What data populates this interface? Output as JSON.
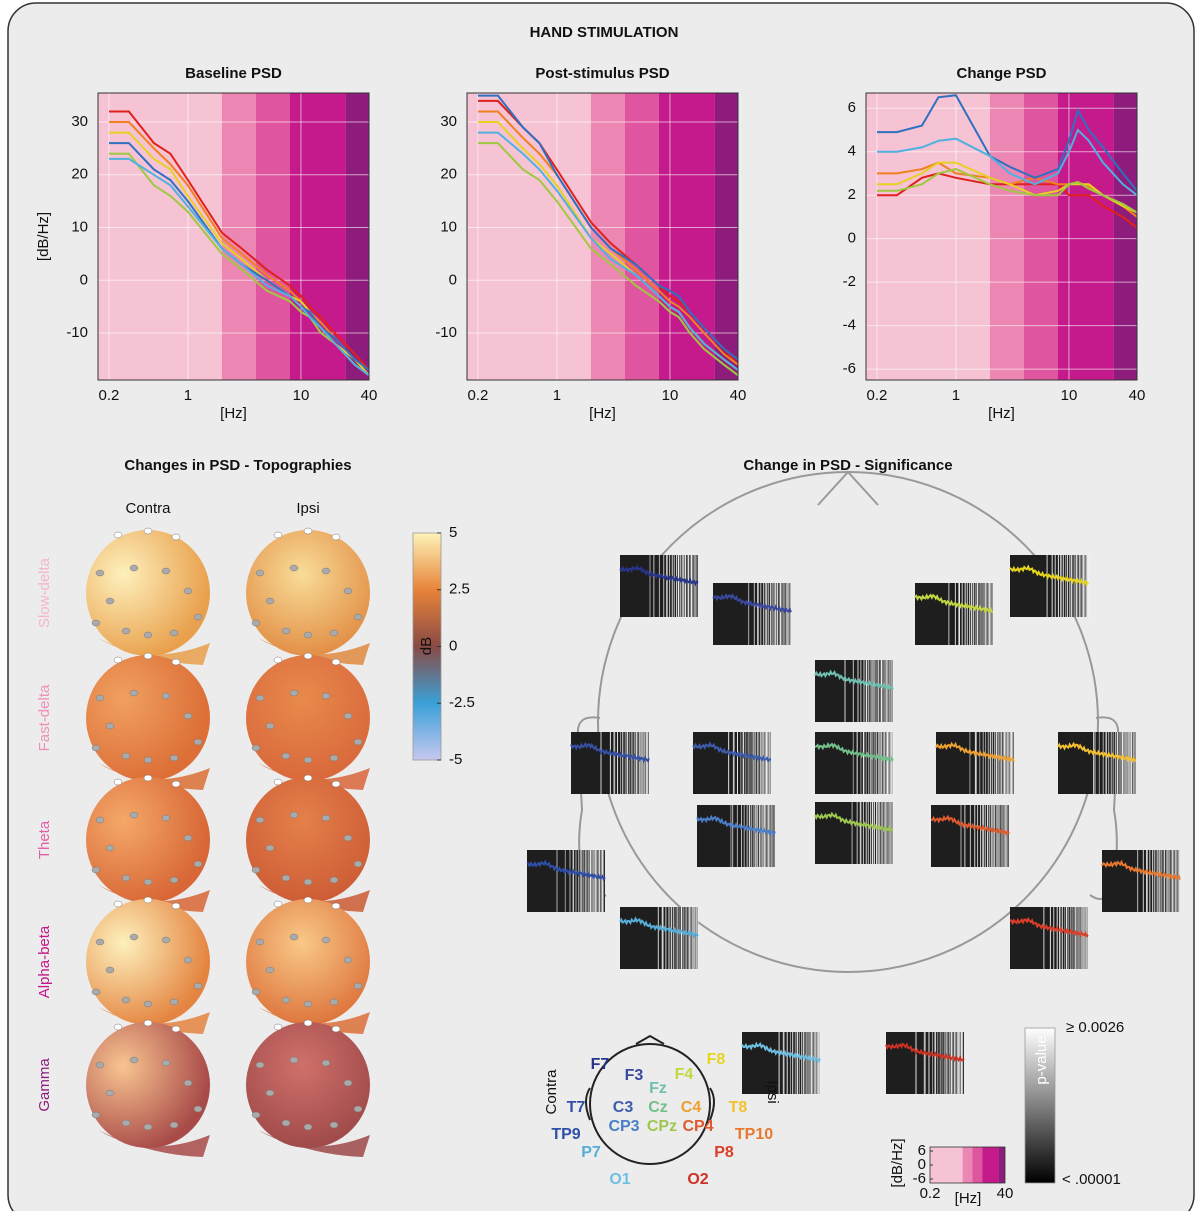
{
  "title": "HAND STIMULATION",
  "bands": {
    "edges": [
      0.16,
      2,
      4,
      8,
      25,
      40
    ],
    "colors": [
      "#f5c3d3",
      "#ec86b2",
      "#e0559f",
      "#c41a8b",
      "#8e1c7c"
    ]
  },
  "chart_data": [
    {
      "type": "line",
      "title": "Baseline PSD",
      "y_label": "[dB/Hz]",
      "x_label": "[Hz]",
      "log_x": true,
      "grid": true,
      "x": [
        0.2,
        0.3,
        0.5,
        0.7,
        1,
        2,
        3,
        5,
        8,
        10,
        12,
        15,
        20,
        30,
        40
      ],
      "xlim": [
        0.16,
        40
      ],
      "xticks": [
        0.2,
        1,
        10,
        40
      ],
      "ylim": [
        -18.9,
        35.5
      ],
      "yticks": [
        -10,
        0,
        10,
        20,
        30
      ],
      "series": [
        {
          "color": "#e0201c",
          "values": [
            32,
            32,
            26,
            24,
            19,
            9,
            6,
            2,
            -1,
            -3,
            -5,
            -7,
            -10,
            -14,
            -17
          ]
        },
        {
          "color": "#f08020",
          "values": [
            30,
            30,
            25,
            22,
            18,
            8,
            5,
            1,
            -2,
            -4,
            -6,
            -8,
            -11,
            -15,
            -17
          ]
        },
        {
          "color": "#e8d020",
          "values": [
            28,
            28,
            23,
            21,
            16,
            7,
            4,
            0,
            -3,
            -4,
            -6,
            -9,
            -12,
            -15,
            -18
          ]
        },
        {
          "color": "#a0c840",
          "values": [
            24,
            24,
            18,
            16,
            13,
            5,
            2,
            -2,
            -4,
            -6,
            -7,
            -10,
            -12,
            -16,
            -18
          ]
        },
        {
          "color": "#3070c0",
          "values": [
            26,
            26,
            21,
            19,
            15,
            6,
            3,
            0,
            -3,
            -5,
            -6,
            -9,
            -11,
            -15,
            -17
          ]
        },
        {
          "color": "#50b0e0",
          "values": [
            23,
            23,
            20,
            18,
            14,
            6,
            3,
            -1,
            -3,
            -5,
            -7,
            -9,
            -12,
            -16,
            -18
          ]
        }
      ]
    },
    {
      "type": "line",
      "title": "Post-stimulus PSD",
      "x_label": "[Hz]",
      "log_x": true,
      "grid": true,
      "x": [
        0.2,
        0.3,
        0.5,
        0.7,
        1,
        2,
        3,
        5,
        8,
        10,
        12,
        15,
        20,
        30,
        40
      ],
      "xlim": [
        0.16,
        40
      ],
      "xticks": [
        0.2,
        1,
        10,
        40
      ],
      "ylim": [
        -18.9,
        35.5
      ],
      "yticks": [
        -10,
        0,
        10,
        20,
        30
      ],
      "series": [
        {
          "color": "#e0201c",
          "values": [
            34,
            34,
            29,
            26,
            21,
            11,
            7,
            3,
            -1,
            -3,
            -4,
            -6,
            -9,
            -13,
            -16
          ]
        },
        {
          "color": "#f08020",
          "values": [
            32,
            32,
            27,
            24,
            20,
            10,
            6,
            2,
            -2,
            -4,
            -5,
            -7,
            -10,
            -14,
            -16
          ]
        },
        {
          "color": "#e8d020",
          "values": [
            30,
            30,
            25,
            22,
            18,
            8,
            5,
            1,
            -3,
            -5,
            -6,
            -9,
            -12,
            -15,
            -17
          ]
        },
        {
          "color": "#a0c840",
          "values": [
            26,
            26,
            21,
            19,
            15,
            6,
            3,
            -1,
            -4,
            -6,
            -7,
            -10,
            -13,
            -16,
            -18
          ]
        },
        {
          "color": "#3070c0",
          "values": [
            35,
            35,
            29,
            26,
            20,
            10,
            6,
            3,
            -1,
            -2,
            -3,
            -6,
            -9,
            -13,
            -15
          ]
        },
        {
          "color": "#50b0e0",
          "values": [
            28,
            28,
            24,
            21,
            17,
            8,
            4,
            1,
            -3,
            -5,
            -6,
            -9,
            -12,
            -15,
            -17
          ]
        }
      ]
    },
    {
      "type": "line",
      "title": "Change PSD",
      "x_label": "[Hz]",
      "log_x": true,
      "grid": true,
      "x": [
        0.2,
        0.3,
        0.5,
        0.7,
        1,
        2,
        3,
        5,
        8,
        10,
        12,
        15,
        20,
        30,
        40
      ],
      "xlim": [
        0.16,
        40
      ],
      "xticks": [
        0.2,
        1,
        10,
        40
      ],
      "ylim": [
        -6.5,
        6.7
      ],
      "yticks": [
        -6,
        -4,
        -2,
        0,
        2,
        4,
        6
      ],
      "series": [
        {
          "color": "#e0201c",
          "values": [
            2,
            2,
            2.8,
            3,
            2.8,
            2.5,
            2.5,
            2.5,
            2.5,
            2,
            2,
            2,
            1.5,
            1,
            0.5
          ]
        },
        {
          "color": "#f08020",
          "values": [
            3,
            3,
            3.2,
            3.5,
            3,
            2.8,
            2.5,
            2.8,
            2.5,
            2.5,
            2.6,
            2.4,
            2,
            1.5,
            1
          ]
        },
        {
          "color": "#e8d020",
          "values": [
            2.5,
            2.5,
            3,
            3.5,
            3.5,
            2.8,
            2.5,
            2,
            2.2,
            2.5,
            2.5,
            2.5,
            2,
            1.5,
            1.2
          ]
        },
        {
          "color": "#a0c840",
          "values": [
            2.2,
            2.2,
            2.5,
            3,
            3.2,
            2.5,
            2.2,
            2,
            2,
            2.5,
            2.6,
            2.3,
            2,
            1.6,
            1.2
          ]
        },
        {
          "color": "#3070c0",
          "values": [
            4.9,
            4.9,
            5.2,
            6.5,
            6.6,
            3.8,
            3.3,
            2.8,
            3.2,
            4.5,
            5.9,
            5,
            4.2,
            3,
            2.2
          ]
        },
        {
          "color": "#50b0e0",
          "values": [
            4,
            4,
            4.2,
            4.5,
            4.6,
            3.8,
            3,
            2.5,
            3,
            4,
            5,
            4.5,
            3.5,
            2.5,
            2
          ]
        }
      ]
    }
  ],
  "topographies": {
    "title": "Changes in PSD - Topographies",
    "columns": [
      "Contra",
      "Ipsi"
    ],
    "rows": [
      {
        "label": "Slow-delta",
        "color": "#f4b6c8"
      },
      {
        "label": "Fast-delta",
        "color": "#ee90b8"
      },
      {
        "label": "Theta",
        "color": "#e060a8"
      },
      {
        "label": "Alpha-beta",
        "color": "#c2188a"
      },
      {
        "label": "Gamma",
        "color": "#8c1c7c"
      }
    ],
    "colorbar": {
      "label": "dB",
      "clim": [
        -5,
        5
      ],
      "ticks": [
        5,
        2.5,
        0,
        -2.5,
        -5
      ],
      "colors": [
        "#c8c8f0",
        "#3aa0d8",
        "#8a4a44",
        "#e8843a",
        "#fdf3b8"
      ]
    }
  },
  "significance": {
    "title": "Change in PSD - Significance",
    "channels": [
      {
        "label": "F7",
        "color": "#27368c"
      },
      {
        "label": "F3",
        "color": "#3a48a0"
      },
      {
        "label": "Fz",
        "color": "#6fc0b0"
      },
      {
        "label": "F4",
        "color": "#c4d640"
      },
      {
        "label": "F8",
        "color": "#e6d41e"
      },
      {
        "label": "T7",
        "color": "#3650a6"
      },
      {
        "label": "C3",
        "color": "#3d5cae"
      },
      {
        "label": "Cz",
        "color": "#72c08a"
      },
      {
        "label": "C4",
        "color": "#eea030"
      },
      {
        "label": "T8",
        "color": "#f4c030"
      },
      {
        "label": "TP9",
        "color": "#2e4ea8"
      },
      {
        "label": "CP3",
        "color": "#4a7ec8"
      },
      {
        "label": "CPz",
        "color": "#9ec650"
      },
      {
        "label": "CP4",
        "color": "#e05a2e"
      },
      {
        "label": "TP10",
        "color": "#e8782e"
      },
      {
        "label": "P7",
        "color": "#56aed8"
      },
      {
        "label": "P8",
        "color": "#dc3e2a"
      },
      {
        "label": "O1",
        "color": "#6ec0e2"
      },
      {
        "label": "O2",
        "color": "#cc3224"
      }
    ],
    "side_labels": [
      "Contra",
      "Ipsi"
    ],
    "pvalue_bar": {
      "label": "p-value",
      "top": "≥ 0.0026",
      "bottom": "< .00001"
    },
    "legend_axes": {
      "y_label": "[dB/Hz]",
      "x_label": "[Hz]",
      "yticks": [
        6,
        0,
        -6
      ],
      "xticks": [
        0.2,
        40
      ]
    }
  }
}
